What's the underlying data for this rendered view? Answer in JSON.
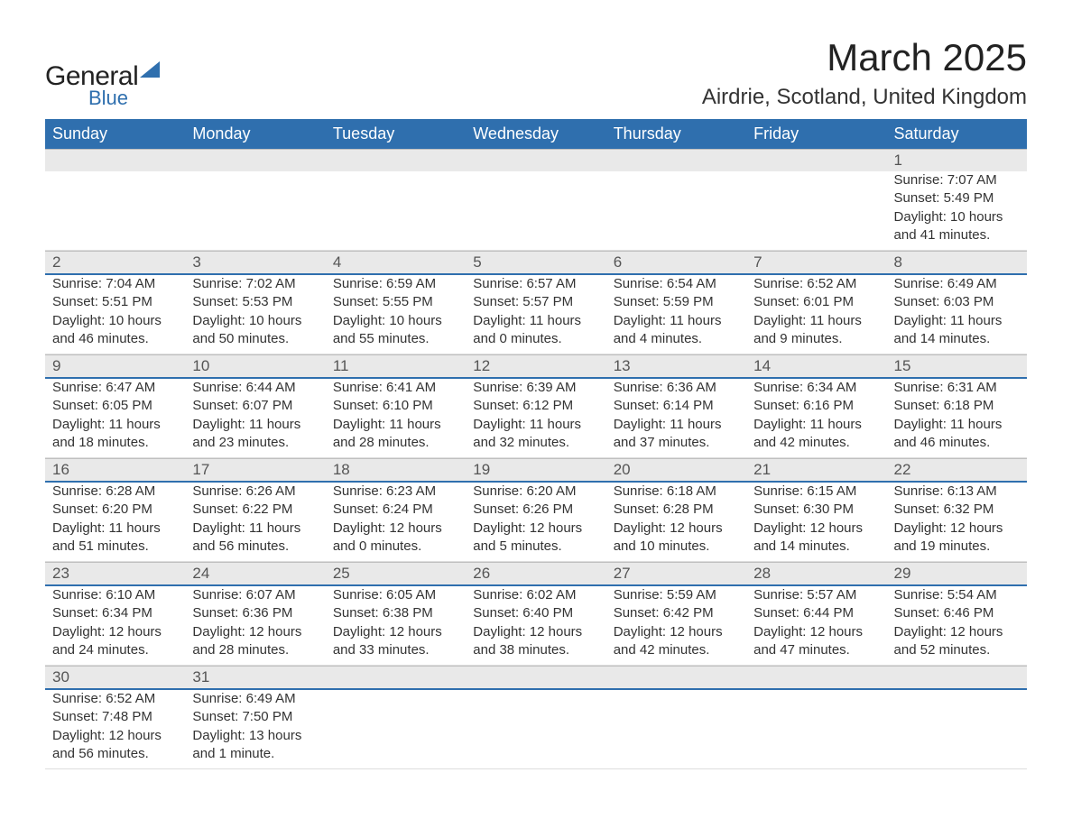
{
  "brand": {
    "text1": "General",
    "text2": "Blue",
    "accent_color": "#2f6fae"
  },
  "title": {
    "month": "March 2025",
    "location": "Airdrie, Scotland, United Kingdom"
  },
  "colors": {
    "header_bg": "#2f6fae",
    "header_text": "#ffffff",
    "band_bg": "#e9e9e9",
    "text": "#333333",
    "daynum": "#555555"
  },
  "fonts": {
    "body_size": 15,
    "header_size": 18,
    "title_size": 42,
    "location_size": 24
  },
  "day_headers": [
    "Sunday",
    "Monday",
    "Tuesday",
    "Wednesday",
    "Thursday",
    "Friday",
    "Saturday"
  ],
  "weeks": [
    {
      "days": [
        {
          "num": "",
          "sunrise": "",
          "sunset": "",
          "daylight1": "",
          "daylight2": ""
        },
        {
          "num": "",
          "sunrise": "",
          "sunset": "",
          "daylight1": "",
          "daylight2": ""
        },
        {
          "num": "",
          "sunrise": "",
          "sunset": "",
          "daylight1": "",
          "daylight2": ""
        },
        {
          "num": "",
          "sunrise": "",
          "sunset": "",
          "daylight1": "",
          "daylight2": ""
        },
        {
          "num": "",
          "sunrise": "",
          "sunset": "",
          "daylight1": "",
          "daylight2": ""
        },
        {
          "num": "",
          "sunrise": "",
          "sunset": "",
          "daylight1": "",
          "daylight2": ""
        },
        {
          "num": "1",
          "sunrise": "Sunrise: 7:07 AM",
          "sunset": "Sunset: 5:49 PM",
          "daylight1": "Daylight: 10 hours",
          "daylight2": "and 41 minutes."
        }
      ]
    },
    {
      "days": [
        {
          "num": "2",
          "sunrise": "Sunrise: 7:04 AM",
          "sunset": "Sunset: 5:51 PM",
          "daylight1": "Daylight: 10 hours",
          "daylight2": "and 46 minutes."
        },
        {
          "num": "3",
          "sunrise": "Sunrise: 7:02 AM",
          "sunset": "Sunset: 5:53 PM",
          "daylight1": "Daylight: 10 hours",
          "daylight2": "and 50 minutes."
        },
        {
          "num": "4",
          "sunrise": "Sunrise: 6:59 AM",
          "sunset": "Sunset: 5:55 PM",
          "daylight1": "Daylight: 10 hours",
          "daylight2": "and 55 minutes."
        },
        {
          "num": "5",
          "sunrise": "Sunrise: 6:57 AM",
          "sunset": "Sunset: 5:57 PM",
          "daylight1": "Daylight: 11 hours",
          "daylight2": "and 0 minutes."
        },
        {
          "num": "6",
          "sunrise": "Sunrise: 6:54 AM",
          "sunset": "Sunset: 5:59 PM",
          "daylight1": "Daylight: 11 hours",
          "daylight2": "and 4 minutes."
        },
        {
          "num": "7",
          "sunrise": "Sunrise: 6:52 AM",
          "sunset": "Sunset: 6:01 PM",
          "daylight1": "Daylight: 11 hours",
          "daylight2": "and 9 minutes."
        },
        {
          "num": "8",
          "sunrise": "Sunrise: 6:49 AM",
          "sunset": "Sunset: 6:03 PM",
          "daylight1": "Daylight: 11 hours",
          "daylight2": "and 14 minutes."
        }
      ]
    },
    {
      "days": [
        {
          "num": "9",
          "sunrise": "Sunrise: 6:47 AM",
          "sunset": "Sunset: 6:05 PM",
          "daylight1": "Daylight: 11 hours",
          "daylight2": "and 18 minutes."
        },
        {
          "num": "10",
          "sunrise": "Sunrise: 6:44 AM",
          "sunset": "Sunset: 6:07 PM",
          "daylight1": "Daylight: 11 hours",
          "daylight2": "and 23 minutes."
        },
        {
          "num": "11",
          "sunrise": "Sunrise: 6:41 AM",
          "sunset": "Sunset: 6:10 PM",
          "daylight1": "Daylight: 11 hours",
          "daylight2": "and 28 minutes."
        },
        {
          "num": "12",
          "sunrise": "Sunrise: 6:39 AM",
          "sunset": "Sunset: 6:12 PM",
          "daylight1": "Daylight: 11 hours",
          "daylight2": "and 32 minutes."
        },
        {
          "num": "13",
          "sunrise": "Sunrise: 6:36 AM",
          "sunset": "Sunset: 6:14 PM",
          "daylight1": "Daylight: 11 hours",
          "daylight2": "and 37 minutes."
        },
        {
          "num": "14",
          "sunrise": "Sunrise: 6:34 AM",
          "sunset": "Sunset: 6:16 PM",
          "daylight1": "Daylight: 11 hours",
          "daylight2": "and 42 minutes."
        },
        {
          "num": "15",
          "sunrise": "Sunrise: 6:31 AM",
          "sunset": "Sunset: 6:18 PM",
          "daylight1": "Daylight: 11 hours",
          "daylight2": "and 46 minutes."
        }
      ]
    },
    {
      "days": [
        {
          "num": "16",
          "sunrise": "Sunrise: 6:28 AM",
          "sunset": "Sunset: 6:20 PM",
          "daylight1": "Daylight: 11 hours",
          "daylight2": "and 51 minutes."
        },
        {
          "num": "17",
          "sunrise": "Sunrise: 6:26 AM",
          "sunset": "Sunset: 6:22 PM",
          "daylight1": "Daylight: 11 hours",
          "daylight2": "and 56 minutes."
        },
        {
          "num": "18",
          "sunrise": "Sunrise: 6:23 AM",
          "sunset": "Sunset: 6:24 PM",
          "daylight1": "Daylight: 12 hours",
          "daylight2": "and 0 minutes."
        },
        {
          "num": "19",
          "sunrise": "Sunrise: 6:20 AM",
          "sunset": "Sunset: 6:26 PM",
          "daylight1": "Daylight: 12 hours",
          "daylight2": "and 5 minutes."
        },
        {
          "num": "20",
          "sunrise": "Sunrise: 6:18 AM",
          "sunset": "Sunset: 6:28 PM",
          "daylight1": "Daylight: 12 hours",
          "daylight2": "and 10 minutes."
        },
        {
          "num": "21",
          "sunrise": "Sunrise: 6:15 AM",
          "sunset": "Sunset: 6:30 PM",
          "daylight1": "Daylight: 12 hours",
          "daylight2": "and 14 minutes."
        },
        {
          "num": "22",
          "sunrise": "Sunrise: 6:13 AM",
          "sunset": "Sunset: 6:32 PM",
          "daylight1": "Daylight: 12 hours",
          "daylight2": "and 19 minutes."
        }
      ]
    },
    {
      "days": [
        {
          "num": "23",
          "sunrise": "Sunrise: 6:10 AM",
          "sunset": "Sunset: 6:34 PM",
          "daylight1": "Daylight: 12 hours",
          "daylight2": "and 24 minutes."
        },
        {
          "num": "24",
          "sunrise": "Sunrise: 6:07 AM",
          "sunset": "Sunset: 6:36 PM",
          "daylight1": "Daylight: 12 hours",
          "daylight2": "and 28 minutes."
        },
        {
          "num": "25",
          "sunrise": "Sunrise: 6:05 AM",
          "sunset": "Sunset: 6:38 PM",
          "daylight1": "Daylight: 12 hours",
          "daylight2": "and 33 minutes."
        },
        {
          "num": "26",
          "sunrise": "Sunrise: 6:02 AM",
          "sunset": "Sunset: 6:40 PM",
          "daylight1": "Daylight: 12 hours",
          "daylight2": "and 38 minutes."
        },
        {
          "num": "27",
          "sunrise": "Sunrise: 5:59 AM",
          "sunset": "Sunset: 6:42 PM",
          "daylight1": "Daylight: 12 hours",
          "daylight2": "and 42 minutes."
        },
        {
          "num": "28",
          "sunrise": "Sunrise: 5:57 AM",
          "sunset": "Sunset: 6:44 PM",
          "daylight1": "Daylight: 12 hours",
          "daylight2": "and 47 minutes."
        },
        {
          "num": "29",
          "sunrise": "Sunrise: 5:54 AM",
          "sunset": "Sunset: 6:46 PM",
          "daylight1": "Daylight: 12 hours",
          "daylight2": "and 52 minutes."
        }
      ]
    },
    {
      "days": [
        {
          "num": "30",
          "sunrise": "Sunrise: 6:52 AM",
          "sunset": "Sunset: 7:48 PM",
          "daylight1": "Daylight: 12 hours",
          "daylight2": "and 56 minutes."
        },
        {
          "num": "31",
          "sunrise": "Sunrise: 6:49 AM",
          "sunset": "Sunset: 7:50 PM",
          "daylight1": "Daylight: 13 hours",
          "daylight2": "and 1 minute."
        },
        {
          "num": "",
          "sunrise": "",
          "sunset": "",
          "daylight1": "",
          "daylight2": ""
        },
        {
          "num": "",
          "sunrise": "",
          "sunset": "",
          "daylight1": "",
          "daylight2": ""
        },
        {
          "num": "",
          "sunrise": "",
          "sunset": "",
          "daylight1": "",
          "daylight2": ""
        },
        {
          "num": "",
          "sunrise": "",
          "sunset": "",
          "daylight1": "",
          "daylight2": ""
        },
        {
          "num": "",
          "sunrise": "",
          "sunset": "",
          "daylight1": "",
          "daylight2": ""
        }
      ]
    }
  ]
}
